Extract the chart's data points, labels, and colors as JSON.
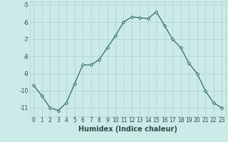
{
  "x": [
    0,
    1,
    2,
    3,
    4,
    5,
    6,
    7,
    8,
    9,
    10,
    11,
    12,
    13,
    14,
    15,
    16,
    17,
    18,
    19,
    20,
    21,
    22,
    23
  ],
  "y": [
    -9.7,
    -10.3,
    -11.0,
    -11.15,
    -10.7,
    -9.6,
    -8.5,
    -8.5,
    -8.2,
    -7.5,
    -6.8,
    -6.0,
    -5.7,
    -5.75,
    -5.8,
    -5.4,
    -6.2,
    -7.0,
    -7.5,
    -8.4,
    -9.0,
    -10.0,
    -10.7,
    -11.0
  ],
  "line_color": "#2d6e63",
  "marker": "D",
  "marker_size": 2.2,
  "bg_color": "#cceae7",
  "grid_color": "#aad4d0",
  "xlabel": "Humidex (Indice chaleur)",
  "xlim": [
    -0.5,
    23.5
  ],
  "ylim": [
    -11.5,
    -4.8
  ],
  "yticks": [
    -11,
    -10,
    -9,
    -8,
    -7,
    -6,
    -5
  ],
  "xticks": [
    0,
    1,
    2,
    3,
    4,
    5,
    6,
    7,
    8,
    9,
    10,
    11,
    12,
    13,
    14,
    15,
    16,
    17,
    18,
    19,
    20,
    21,
    22,
    23
  ],
  "tick_label_fontsize": 5.5,
  "xlabel_fontsize": 7.0
}
